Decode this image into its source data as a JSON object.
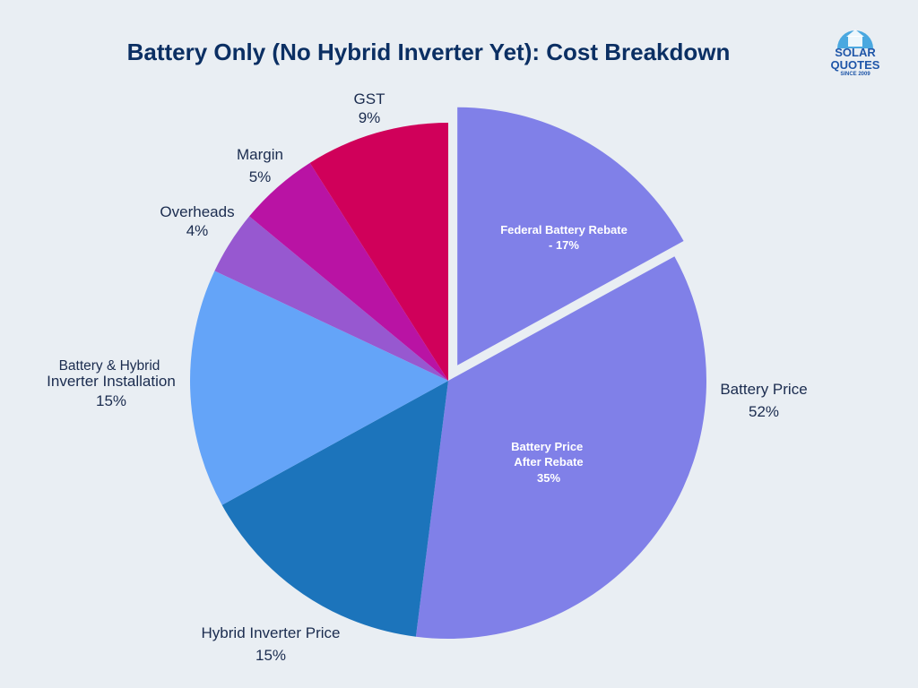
{
  "chart_data": {
    "type": "pie",
    "title": "Battery Only (No Hybrid Inverter Yet): Cost Breakdown",
    "slices": [
      {
        "label": "Battery Price",
        "value": 52,
        "value_label": "52%",
        "color": "#8080e8",
        "sub_slices": [
          {
            "label": "Federal Battery Rebate",
            "value_label": "- 17%",
            "value": 17,
            "exploded": true
          },
          {
            "label": "Battery Price After Rebate",
            "value_label": "35%",
            "value": 35
          }
        ]
      },
      {
        "label": "Hybrid Inverter Price",
        "value": 15,
        "value_label": "15%",
        "color": "#1c74bb"
      },
      {
        "label": "Battery & Hybrid Inverter Installation",
        "label_line1": "Battery & Hybrid",
        "label_line2": "Inverter Installation",
        "value": 15,
        "value_label": "15%",
        "color": "#64a4f8"
      },
      {
        "label": "Overheads",
        "value": 4,
        "value_label": "4%",
        "color": "#9758d0"
      },
      {
        "label": "Margin",
        "value": 5,
        "value_label": "5%",
        "color": "#b913a4"
      },
      {
        "label": "GST",
        "value": 9,
        "value_label": "9%",
        "color": "#d0005a"
      }
    ]
  },
  "logo": {
    "line1": "SOLAR",
    "line2": "QUOTES",
    "line3": "SINCE 2009",
    "color": "#1f56a8"
  }
}
